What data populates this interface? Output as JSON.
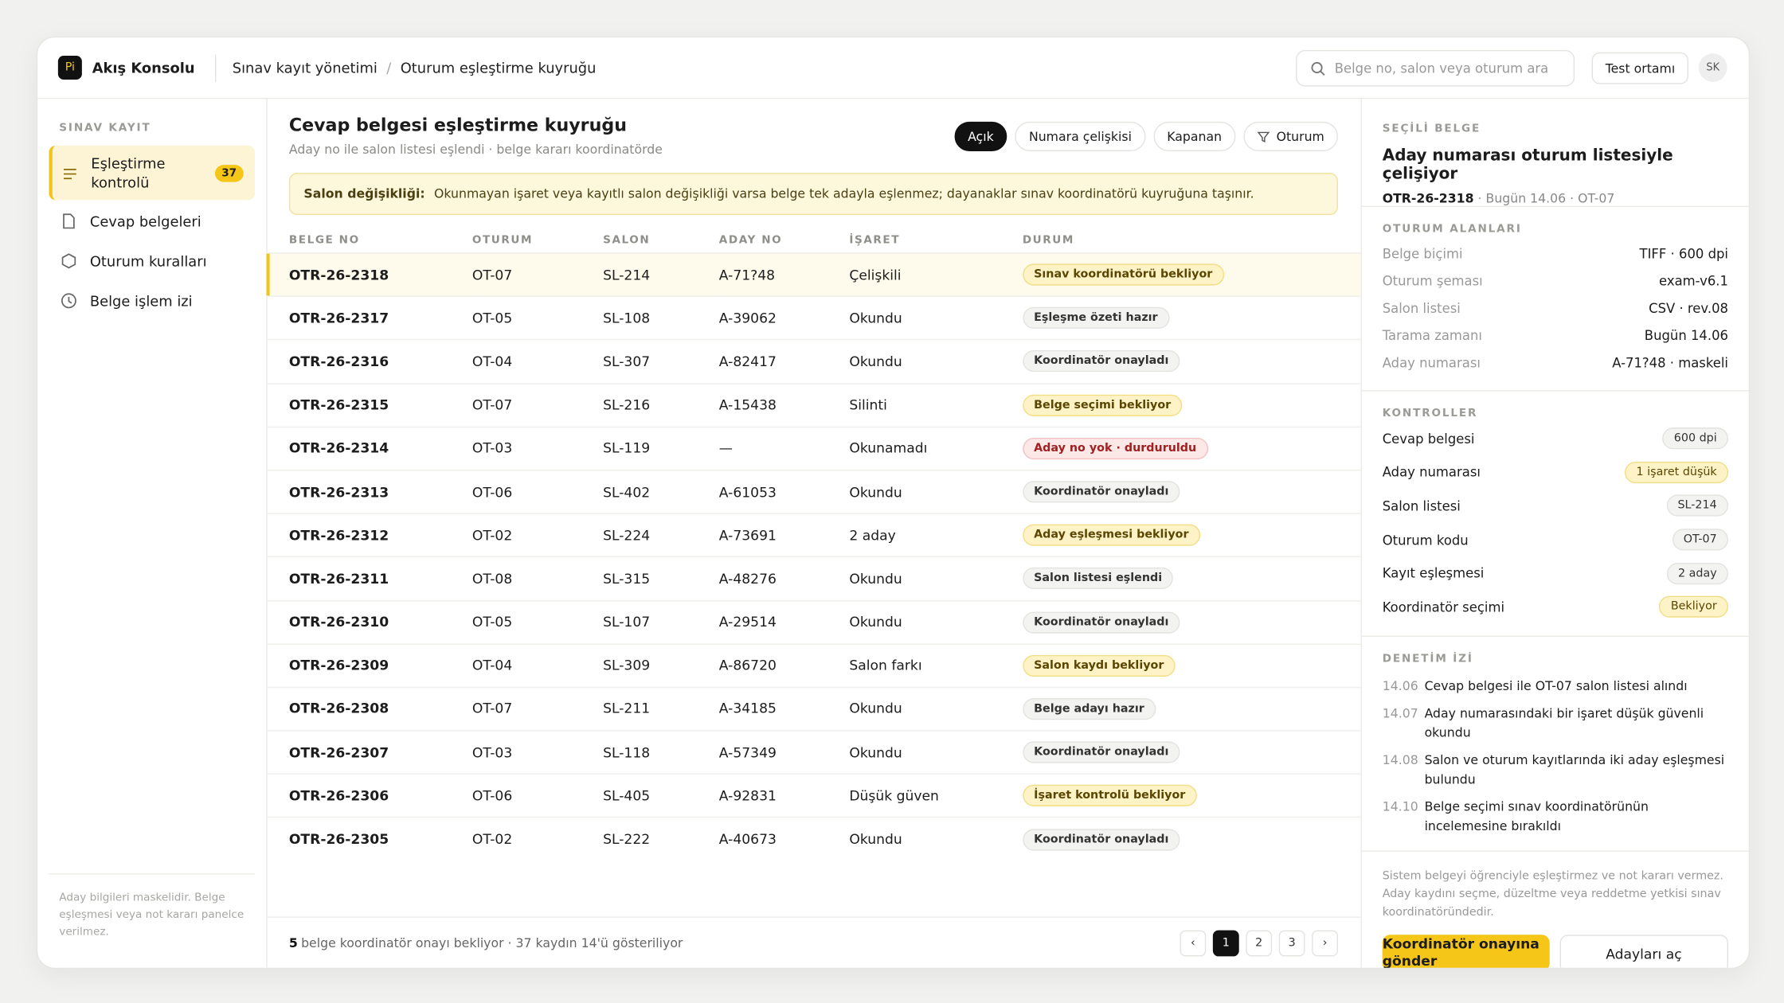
{
  "header": {
    "logo": "Pi",
    "app": "Akış Konsolu",
    "breadcrumb": [
      "Sınav kayıt yönetimi",
      "Oturum eşleştirme kuyruğu"
    ],
    "search": "Belge no, salon veya oturum ara",
    "env": "Test ortamı",
    "avatar": "SK"
  },
  "sidebar": {
    "section": "SINAV KAYIT",
    "items": [
      {
        "label": "Eşleştirme kontrolü",
        "badge": "37",
        "active": true
      },
      {
        "label": "Cevap belgeleri"
      },
      {
        "label": "Oturum kuralları"
      },
      {
        "label": "Belge işlem izi"
      }
    ],
    "note": "Aday bilgileri maskelidir. Belge eşleşmesi veya not kararı panelce verilmez."
  },
  "main": {
    "title": "Cevap belgesi eşleştirme kuyruğu",
    "subtitle": "Aday no ile salon listesi eşlendi · belge kararı koordinatörde",
    "filters": [
      {
        "label": "Açık",
        "active": true
      },
      {
        "label": "Numara çelişkisi"
      },
      {
        "label": "Kapanan"
      },
      {
        "label": "Oturum"
      }
    ],
    "notice": {
      "label": "Salon değişikliği:",
      "text": "Okunmayan işaret veya kayıtlı salon değişikliği varsa belge tek adayla eşlenmez; dayanaklar sınav koordinatörü kuyruğuna taşınır."
    },
    "table": {
      "columns": [
        "BELGE NO",
        "OTURUM",
        "SALON",
        "ADAY NO",
        "İŞARET",
        "DURUM"
      ],
      "rows": [
        {
          "cells": [
            "OTR-26-2318",
            "OT-07",
            "SL-214",
            "A-71?48",
            "Çelişkili",
            "Sınav koordinatörü bekliyor"
          ],
          "tone": "warn",
          "selected": true
        },
        {
          "cells": [
            "OTR-26-2317",
            "OT-05",
            "SL-108",
            "A-39062",
            "Okundu",
            "Eşleşme özeti hazır"
          ],
          "tone": "neutral"
        },
        {
          "cells": [
            "OTR-26-2316",
            "OT-04",
            "SL-307",
            "A-82417",
            "Okundu",
            "Koordinatör onayladı"
          ],
          "tone": "neutral"
        },
        {
          "cells": [
            "OTR-26-2315",
            "OT-07",
            "SL-216",
            "A-15438",
            "Silinti",
            "Belge seçimi bekliyor"
          ],
          "tone": "warn"
        },
        {
          "cells": [
            "OTR-26-2314",
            "OT-03",
            "SL-119",
            "—",
            "Okunamadı",
            "Aday no yok · durduruldu"
          ],
          "tone": "danger"
        },
        {
          "cells": [
            "OTR-26-2313",
            "OT-06",
            "SL-402",
            "A-61053",
            "Okundu",
            "Koordinatör onayladı"
          ],
          "tone": "neutral"
        },
        {
          "cells": [
            "OTR-26-2312",
            "OT-02",
            "SL-224",
            "A-73691",
            "2 aday",
            "Aday eşleşmesi bekliyor"
          ],
          "tone": "warn"
        },
        {
          "cells": [
            "OTR-26-2311",
            "OT-08",
            "SL-315",
            "A-48276",
            "Okundu",
            "Salon listesi eşlendi"
          ],
          "tone": "neutral"
        },
        {
          "cells": [
            "OTR-26-2310",
            "OT-05",
            "SL-107",
            "A-29514",
            "Okundu",
            "Koordinatör onayladı"
          ],
          "tone": "neutral"
        },
        {
          "cells": [
            "OTR-26-2309",
            "OT-04",
            "SL-309",
            "A-86720",
            "Salon farkı",
            "Salon kaydı bekliyor"
          ],
          "tone": "warn"
        },
        {
          "cells": [
            "OTR-26-2308",
            "OT-07",
            "SL-211",
            "A-34185",
            "Okundu",
            "Belge adayı hazır"
          ],
          "tone": "neutral"
        },
        {
          "cells": [
            "OTR-26-2307",
            "OT-03",
            "SL-118",
            "A-57349",
            "Okundu",
            "Koordinatör onayladı"
          ],
          "tone": "neutral"
        },
        {
          "cells": [
            "OTR-26-2306",
            "OT-06",
            "SL-405",
            "A-92831",
            "Düşük güven",
            "İşaret kontrolü bekliyor"
          ],
          "tone": "warn"
        },
        {
          "cells": [
            "OTR-26-2305",
            "OT-02",
            "SL-222",
            "A-40673",
            "Okundu",
            "Koordinatör onayladı"
          ],
          "tone": "neutral"
        }
      ]
    },
    "footer": {
      "count": "5",
      "text": "belge koordinatör onayı bekliyor · 37 kaydın 14'ü gösteriliyor"
    },
    "pagination": {
      "prev": "‹",
      "pages": [
        "1",
        "2",
        "3"
      ],
      "next": "›"
    }
  },
  "panel": {
    "section": "SEÇİLİ BELGE",
    "title": "Aday numarası oturum listesiyle çelişiyor",
    "id": "OTR-26-2318",
    "meta": "Bugün 14.06 · OT-07",
    "fields_title": "OTURUM ALANLARI",
    "fields": [
      [
        "Belge biçimi",
        "TIFF · 600 dpi"
      ],
      [
        "Oturum şeması",
        "exam-v6.1"
      ],
      [
        "Salon listesi",
        "CSV · rev.08"
      ],
      [
        "Tarama zamanı",
        "Bugün 14.06"
      ],
      [
        "Aday numarası",
        "A-71?48 · maskeli"
      ]
    ],
    "controls_title": "KONTROLLER",
    "controls": [
      {
        "label": "Cevap belgesi",
        "value": "600 dpi",
        "tone": "neutral"
      },
      {
        "label": "Aday numarası",
        "value": "1 işaret düşük",
        "tone": "warn"
      },
      {
        "label": "Salon listesi",
        "value": "SL-214",
        "tone": "neutral"
      },
      {
        "label": "Oturum kodu",
        "value": "OT-07",
        "tone": "neutral"
      },
      {
        "label": "Kayıt eşleşmesi",
        "value": "2 aday",
        "tone": "neutral"
      },
      {
        "label": "Koordinatör seçimi",
        "value": "Bekliyor",
        "tone": "warn"
      }
    ],
    "audit_title": "DENETİM İZİ",
    "audit": [
      [
        "14.06",
        "Cevap belgesi ile OT-07 salon listesi alındı"
      ],
      [
        "14.07",
        "Aday numarasındaki bir işaret düşük güvenli okundu"
      ],
      [
        "14.08",
        "Salon ve oturum kayıtlarında iki aday eşleşmesi bulundu"
      ],
      [
        "14.10",
        "Belge seçimi sınav koordinatörünün incelemesine bırakıldı"
      ]
    ],
    "disclaimer": "Sistem belgeyi öğrenciyle eşleştirmez ve not kararı vermez. Aday kaydını seçme, düzeltme veya reddetme yetkisi sınav koordinatöründedir.",
    "primary": "Koordinatör onayına gönder",
    "secondary": "Adayları aç"
  }
}
